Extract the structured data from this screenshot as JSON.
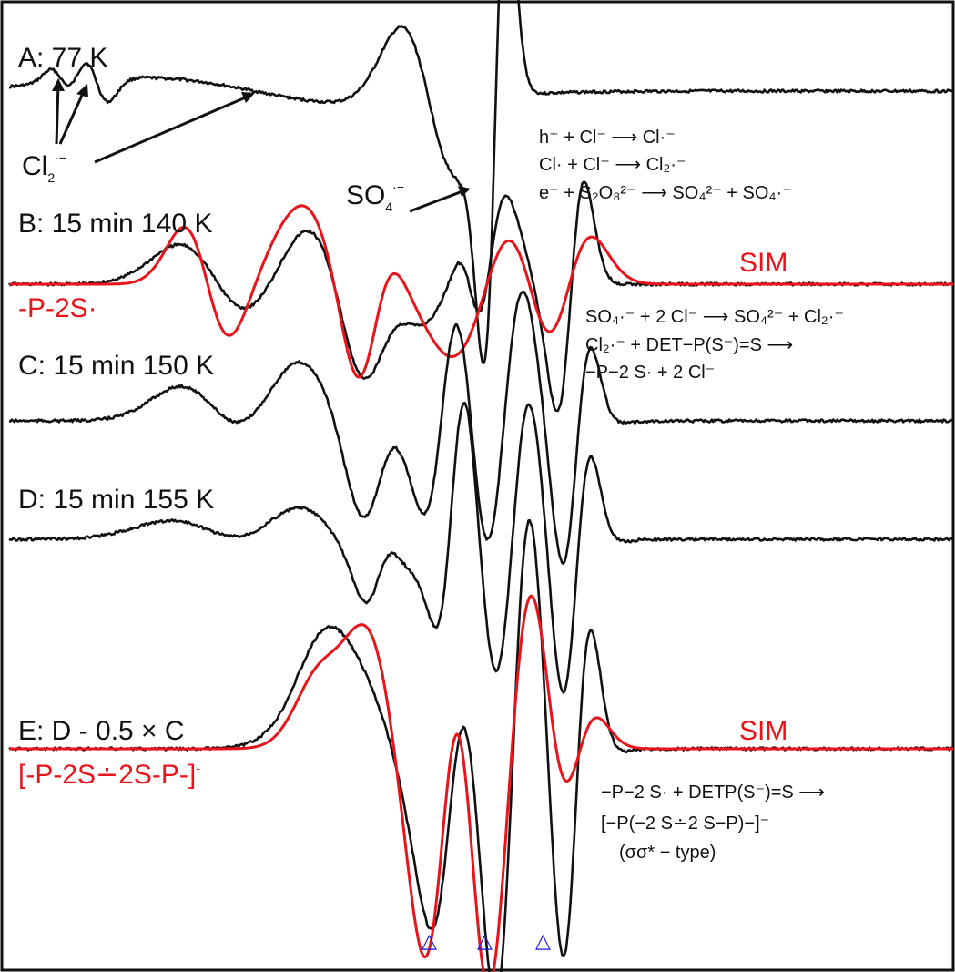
{
  "colors": {
    "experimental": "#111111",
    "simulation": "#e8141c",
    "markers": "#1414e0"
  },
  "labels": {
    "a": "A: 77 K",
    "b": "B: 15 min 140 K",
    "c": "C: 15 min 150 K",
    "d": "D: 15 min 155 K",
    "e": "E: D - 0.5 × C",
    "sim": "SIM",
    "so4": "SO",
    "so4_sub": "4",
    "so4_sup": "·−",
    "cl2": "Cl",
    "cl2_sub": "2",
    "cl2_sup": "·−",
    "radical_b": "-P-2S·",
    "radical_e": "[-P-2S∸2S-P-]",
    "radical_e_sup": "-"
  },
  "equations": {
    "eq_a1": "h⁺ + Cl⁻ ⟶ Cl·⁻",
    "eq_a2": "Cl· + Cl⁻ ⟶ Cl₂·⁻",
    "eq_a3": "e⁻ + S₂O₈²⁻ ⟶ SO₄²⁻ + SO₄·⁻",
    "eq_b1": "SO₄·⁻ + 2 Cl⁻ ⟶ SO₄²⁻ + Cl₂·⁻",
    "eq_b2": "Cl₂·⁻ + DET−P(S⁻)=S ⟶",
    "eq_b3": "−P−2 S· + 2 Cl⁻",
    "eq_e1": "−P−2 S· + DETP(S⁻)=S ⟶",
    "eq_e2": "[−P(−2 S∸2 S−P)−]⁻",
    "eq_e3": "(σσ* − type)"
  },
  "markers": {
    "symbol": "△",
    "count": 3
  },
  "chart_data": {
    "type": "line",
    "title": "",
    "xlabel": "",
    "ylabel": "",
    "x_range": [
      0,
      1
    ],
    "grid": false,
    "legend": "none",
    "note": "Stacked EPR spectra (derivative lineshapes); features listed as [position 0-1 along field axis, relative amplitude, width]",
    "series": [
      {
        "name": "A: 77 K",
        "color": "#111111",
        "features": [
          [
            0.056,
            0.35,
            0.012
          ],
          [
            0.092,
            0.6,
            0.013
          ],
          [
            0.26,
            0.35,
            0.12
          ],
          [
            0.445,
            2.0,
            0.03
          ],
          [
            0.515,
            -6.0,
            0.012
          ]
        ]
      },
      {
        "name": "B: 15 min 140 K",
        "color": "#111111",
        "features": [
          [
            0.22,
            0.9,
            0.04
          ],
          [
            0.36,
            1.5,
            0.045
          ],
          [
            0.39,
            -1.3,
            0.025
          ],
          [
            0.46,
            -0.8,
            0.04
          ],
          [
            0.49,
            0.5,
            0.012
          ],
          [
            0.51,
            -1.0,
            0.015
          ],
          [
            0.555,
            0.6,
            0.02
          ],
          [
            0.595,
            -2.4,
            0.014
          ]
        ]
      },
      {
        "name": "SIM",
        "color": "#e8141c",
        "features": [
          [
            0.21,
            1.3,
            0.025
          ],
          [
            0.35,
            1.8,
            0.04
          ],
          [
            0.385,
            -1.2,
            0.02
          ],
          [
            0.44,
            0.7,
            0.035
          ],
          [
            0.515,
            -1.0,
            0.04
          ],
          [
            0.55,
            0.9,
            0.03
          ],
          [
            0.59,
            -1.2,
            0.025
          ]
        ]
      },
      {
        "name": "C: 15 min 150 K",
        "color": "#111111",
        "features": [
          [
            0.22,
            0.7,
            0.04
          ],
          [
            0.35,
            1.5,
            0.05
          ],
          [
            0.39,
            -1.0,
            0.02
          ],
          [
            0.46,
            -1.5,
            0.018
          ],
          [
            0.49,
            1.2,
            0.02
          ],
          [
            0.525,
            -2.0,
            0.02
          ],
          [
            0.565,
            1.0,
            0.03
          ],
          [
            0.6,
            -2.2,
            0.015
          ]
        ]
      },
      {
        "name": "D: 15 min 155 K",
        "color": "#111111",
        "features": [
          [
            0.22,
            0.5,
            0.05
          ],
          [
            0.35,
            1.2,
            0.05
          ],
          [
            0.39,
            -0.8,
            0.015
          ],
          [
            0.47,
            -2.6,
            0.015
          ],
          [
            0.495,
            1.7,
            0.02
          ],
          [
            0.535,
            -3.0,
            0.018
          ],
          [
            0.565,
            1.4,
            0.03
          ],
          [
            0.6,
            -3.2,
            0.015
          ]
        ]
      },
      {
        "name": "E: D - 0.5 × C",
        "color": "#111111",
        "features": [
          [
            0.35,
            0.6,
            0.03
          ],
          [
            0.41,
            2.4,
            0.05
          ],
          [
            0.47,
            -1.9,
            0.02
          ],
          [
            0.49,
            1.6,
            0.02
          ],
          [
            0.535,
            -4.0,
            0.018
          ],
          [
            0.565,
            1.3,
            0.03
          ],
          [
            0.6,
            -3.2,
            0.015
          ]
        ]
      },
      {
        "name": "SIM",
        "color": "#e8141c",
        "features": [
          [
            0.34,
            0.6,
            0.025
          ],
          [
            0.41,
            3.0,
            0.04
          ],
          [
            0.46,
            -1.6,
            0.02
          ],
          [
            0.49,
            1.9,
            0.02
          ],
          [
            0.53,
            -2.6,
            0.025
          ],
          [
            0.57,
            0.7,
            0.02
          ],
          [
            0.6,
            -0.7,
            0.02
          ]
        ]
      }
    ]
  }
}
